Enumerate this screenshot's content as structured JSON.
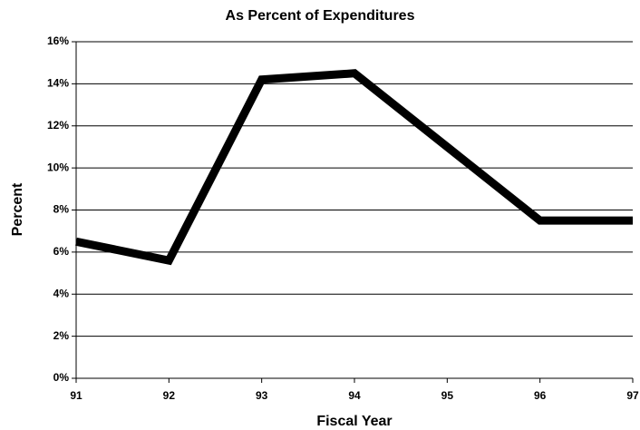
{
  "chart_data": {
    "type": "line",
    "title": "As Percent of Expenditures",
    "x_label": "Fiscal Year",
    "y_label": "Percent",
    "categories": [
      "91",
      "92",
      "93",
      "94",
      "95",
      "96",
      "97"
    ],
    "series": [
      {
        "name": "Percent",
        "color": "#000000",
        "values": [
          6.5,
          5.6,
          14.2,
          14.5,
          11.0,
          7.5,
          7.5
        ]
      }
    ],
    "ylim": [
      0,
      16
    ],
    "yticks": [
      {
        "value": 0,
        "label": "0%"
      },
      {
        "value": 2,
        "label": "2%"
      },
      {
        "value": 4,
        "label": "4%"
      },
      {
        "value": 6,
        "label": "6%"
      },
      {
        "value": 8,
        "label": "8%"
      },
      {
        "value": 10,
        "label": "10%"
      },
      {
        "value": 12,
        "label": "12%"
      },
      {
        "value": 14,
        "label": "14%"
      },
      {
        "value": 16,
        "label": "16%"
      }
    ],
    "grid": true
  }
}
